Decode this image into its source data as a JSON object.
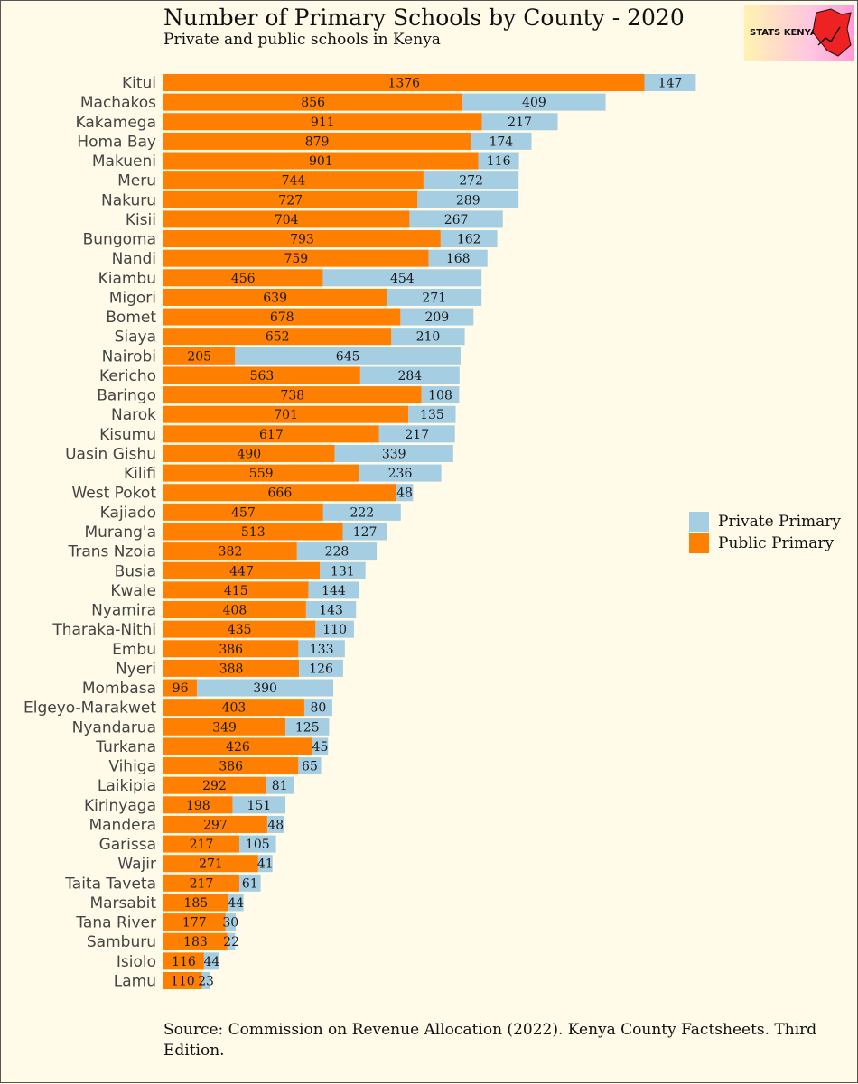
{
  "colors": {
    "background": "#fffbe8",
    "public": "#ff7f00",
    "private": "#a6cee3",
    "text": "#111111",
    "category_text": "#444444"
  },
  "logo": {
    "text": "STATS KENYA"
  },
  "chart_data": {
    "type": "bar",
    "orientation": "horizontal",
    "stacked": true,
    "title": "Number of Primary Schools by County - 2020",
    "subtitle": "Private and public schools in Kenya",
    "source": "Source: Commission on Revenue Allocation (2022). Kenya County Factsheets. Third Edition.",
    "legend_position": "right",
    "xlim": [
      0,
      1600
    ],
    "grid": false,
    "categories": [
      "Kitui",
      "Machakos",
      "Kakamega",
      "Homa Bay",
      "Makueni",
      "Meru",
      "Nakuru",
      "Kisii",
      "Bungoma",
      "Nandi",
      "Kiambu",
      "Migori",
      "Bomet",
      "Siaya",
      "Nairobi",
      "Kericho",
      "Baringo",
      "Narok",
      "Kisumu",
      "Uasin Gishu",
      "Kilifi",
      "West Pokot",
      "Kajiado",
      "Murang'a",
      "Trans Nzoia",
      "Busia",
      "Kwale",
      "Nyamira",
      "Tharaka-Nithi",
      "Embu",
      "Nyeri",
      "Mombasa",
      "Elgeyo-Marakwet",
      "Nyandarua",
      "Turkana",
      "Vihiga",
      "Laikipia",
      "Kirinyaga",
      "Mandera",
      "Garissa",
      "Wajir",
      "Taita Taveta",
      "Marsabit",
      "Tana River",
      "Samburu",
      "Isiolo",
      "Lamu"
    ],
    "series": [
      {
        "name": "Public Primary",
        "color": "#ff7f00",
        "values": [
          1376,
          856,
          911,
          879,
          901,
          744,
          727,
          704,
          793,
          759,
          456,
          639,
          678,
          652,
          205,
          563,
          738,
          701,
          617,
          490,
          559,
          666,
          457,
          513,
          382,
          447,
          415,
          408,
          435,
          386,
          388,
          96,
          403,
          349,
          426,
          386,
          292,
          198,
          297,
          217,
          271,
          217,
          185,
          177,
          183,
          116,
          110
        ]
      },
      {
        "name": "Private Primary",
        "color": "#a6cee3",
        "values": [
          147,
          409,
          217,
          174,
          116,
          272,
          289,
          267,
          162,
          168,
          454,
          271,
          209,
          210,
          645,
          284,
          108,
          135,
          217,
          339,
          236,
          48,
          222,
          127,
          228,
          131,
          144,
          143,
          110,
          133,
          126,
          390,
          80,
          125,
          45,
          65,
          81,
          151,
          48,
          105,
          41,
          61,
          44,
          30,
          22,
          44,
          23
        ]
      }
    ],
    "legend": [
      "Private Primary",
      "Public Primary"
    ]
  }
}
